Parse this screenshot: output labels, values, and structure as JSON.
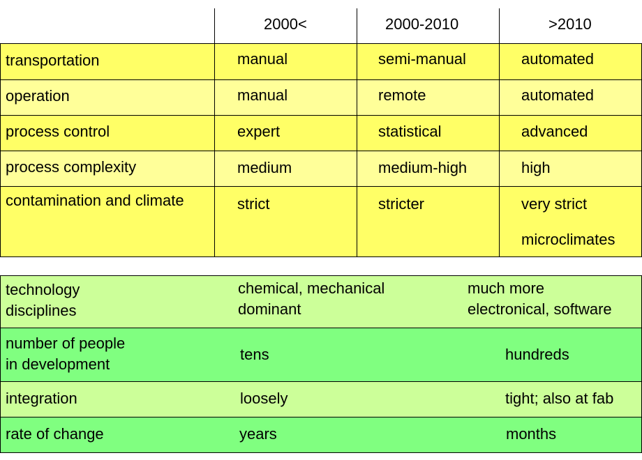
{
  "colors": {
    "row_yellow": "#ffff66",
    "row_light_yellow": "#ffff99",
    "row_light_green": "#ccff99",
    "row_green": "#80ff80"
  },
  "table1": {
    "headers": [
      "2000<",
      "2000-2010",
      ">2010"
    ],
    "rows": [
      {
        "label": "transportation",
        "values": [
          "manual",
          "semi-manual",
          "automated"
        ]
      },
      {
        "label": "operation",
        "values": [
          "manual",
          "remote",
          "automated"
        ]
      },
      {
        "label": "process control",
        "values": [
          "expert",
          "statistical",
          "advanced"
        ]
      },
      {
        "label": "process complexity",
        "values": [
          "medium",
          "medium-high",
          "high"
        ]
      },
      {
        "label": "contamination and climate",
        "values": [
          "strict",
          "stricter",
          "very strict"
        ],
        "extra": "microclimates"
      }
    ]
  },
  "table2": {
    "rows": [
      {
        "label_lines": [
          "technology",
          "disciplines"
        ],
        "left_lines": [
          "chemical, mechanical",
          "dominant"
        ],
        "right_lines": [
          "much more",
          "electronical, software"
        ]
      },
      {
        "label_lines": [
          "number of people",
          "in development"
        ],
        "left": "tens",
        "right": "hundreds"
      },
      {
        "label": "integration",
        "left": "loosely",
        "right": "tight; also at fab"
      },
      {
        "label": "rate of change",
        "left": "years",
        "right": "months"
      }
    ]
  }
}
